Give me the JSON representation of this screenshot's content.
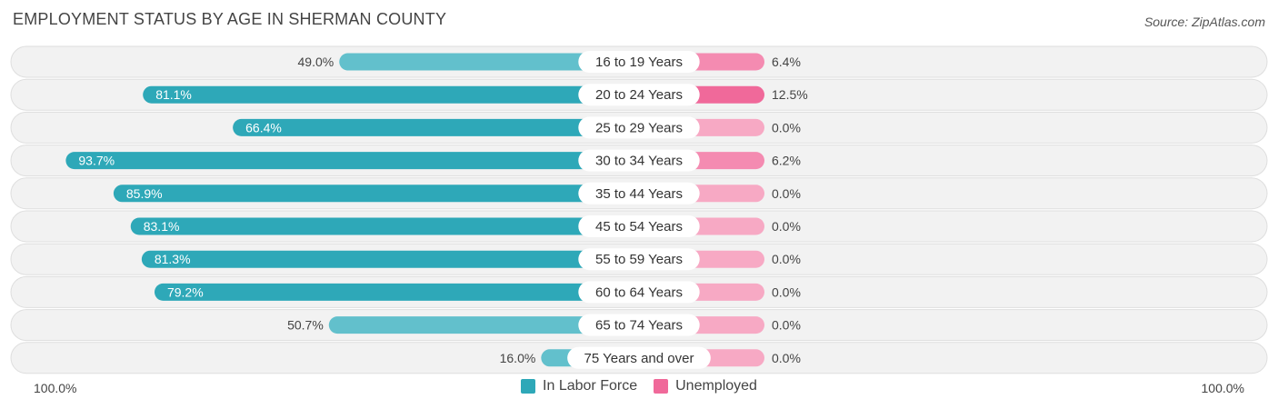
{
  "colors": {
    "labor_force": "#2ea8b8",
    "labor_force_light": "#62c0cc",
    "unemployed": "#f0699a",
    "unemployed_light": "#f7a9c4",
    "row_bg": "#f2f2f2",
    "row_border": "#dedede"
  },
  "chart_data": {
    "type": "bar",
    "orientation": "horizontal-diverging",
    "title": "EMPLOYMENT STATUS BY AGE IN SHERMAN COUNTY",
    "source": "Source: ZipAtlas.com",
    "categories": [
      "16 to 19 Years",
      "20 to 24 Years",
      "25 to 29 Years",
      "30 to 34 Years",
      "35 to 44 Years",
      "45 to 54 Years",
      "55 to 59 Years",
      "60 to 64 Years",
      "65 to 74 Years",
      "75 Years and over"
    ],
    "series": [
      {
        "name": "In Labor Force",
        "values": [
          49.0,
          81.1,
          66.4,
          93.7,
          85.9,
          83.1,
          81.3,
          79.2,
          50.7,
          16.0
        ],
        "labels": [
          "49.0%",
          "81.1%",
          "66.4%",
          "93.7%",
          "85.9%",
          "83.1%",
          "81.3%",
          "79.2%",
          "50.7%",
          "16.0%"
        ]
      },
      {
        "name": "Unemployed",
        "values": [
          6.4,
          12.5,
          0.0,
          6.2,
          0.0,
          0.0,
          0.0,
          0.0,
          0.0,
          0.0
        ],
        "labels": [
          "6.4%",
          "12.5%",
          "0.0%",
          "6.2%",
          "0.0%",
          "0.0%",
          "0.0%",
          "0.0%",
          "0.0%",
          "0.0%"
        ]
      }
    ],
    "axis": {
      "left_label": "100.0%",
      "right_label": "100.0%",
      "xlim": [
        -100,
        100
      ]
    },
    "legend": [
      "In Labor Force",
      "Unemployed"
    ],
    "legend_position": "bottom-center"
  }
}
